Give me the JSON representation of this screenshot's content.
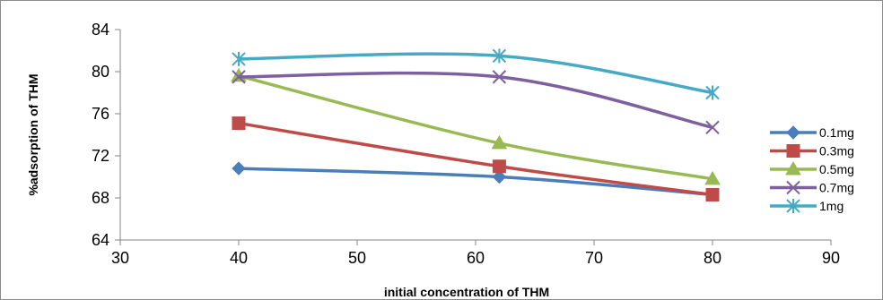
{
  "chart_data": {
    "type": "line",
    "title": "",
    "xlabel": "initial concentration of THM",
    "ylabel": "%adsorption of THM",
    "xlim": [
      30,
      90
    ],
    "ylim": [
      64,
      84
    ],
    "x_ticks": [
      30,
      40,
      50,
      60,
      70,
      80,
      90
    ],
    "y_ticks": [
      64,
      68,
      72,
      76,
      80,
      84
    ],
    "grid": false,
    "legend_position": "right",
    "x": [
      40,
      62,
      80
    ],
    "series": [
      {
        "name": "0.1mg",
        "values": [
          70.8,
          70.0,
          68.3
        ],
        "color": "#4a7ebb",
        "marker": "diamond"
      },
      {
        "name": "0.3mg",
        "values": [
          75.1,
          71.0,
          68.3
        ],
        "color": "#be4b48",
        "marker": "square"
      },
      {
        "name": "0.5mg",
        "values": [
          79.6,
          73.2,
          69.8
        ],
        "color": "#98b954",
        "marker": "triangle"
      },
      {
        "name": "0.7mg",
        "values": [
          79.5,
          79.5,
          74.7
        ],
        "color": "#7d60a0",
        "marker": "x"
      },
      {
        "name": "1mg",
        "values": [
          81.2,
          81.5,
          78.0
        ],
        "color": "#46aac5",
        "marker": "star"
      }
    ]
  }
}
